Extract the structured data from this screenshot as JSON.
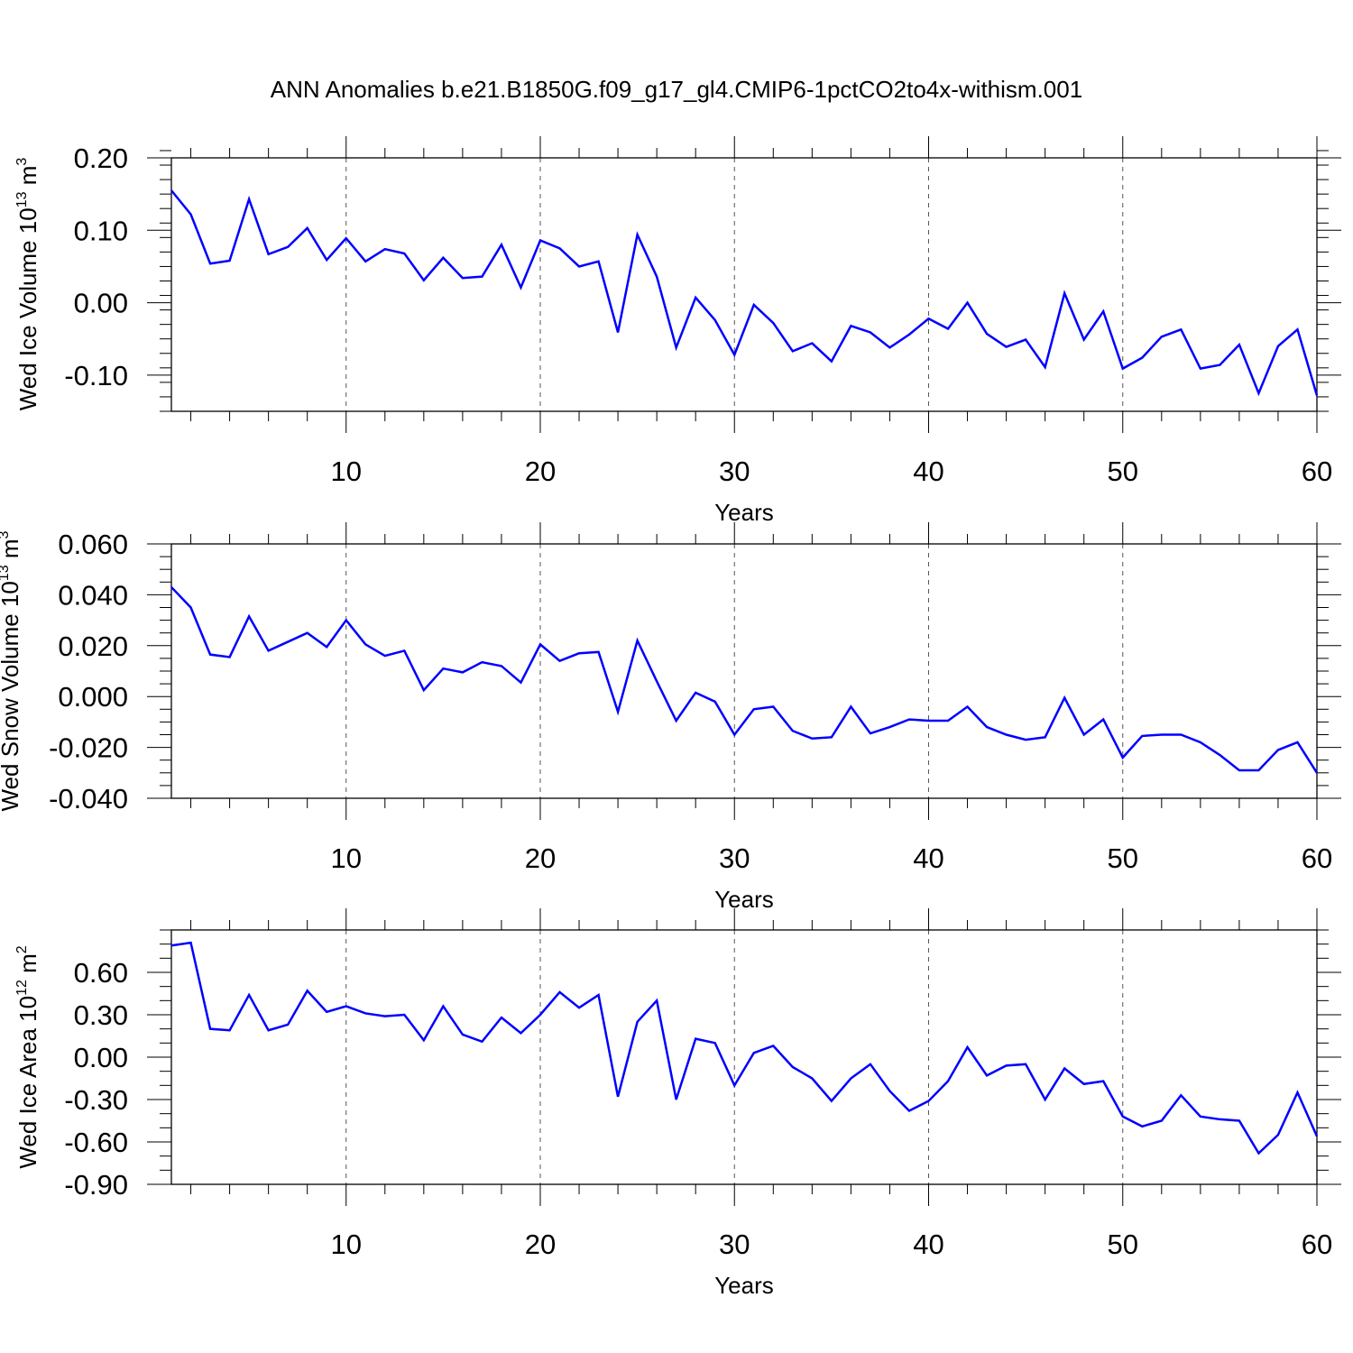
{
  "title": "ANN Anomalies b.e21.B1850G.f09_g17_gl4.CMIP6-1pctCO2to4x-withism.001",
  "line_color": "#0000ff",
  "chart_data": [
    {
      "type": "line",
      "ylabel": "Wed Ice Volume 10",
      "ylabel_exp": "13",
      "ylabel_unit": "m",
      "ylabel_unit_exp": "3",
      "xlabel": "Years",
      "xlim": [
        1,
        60
      ],
      "ylim": [
        -0.15,
        0.2
      ],
      "yticks": [
        0.2,
        0.1,
        0.0,
        -0.1
      ],
      "ytick_labels": [
        "0.20",
        "0.10",
        "0.00",
        "-0.10"
      ],
      "yminor_step": 0.02,
      "xticks": [
        10,
        20,
        30,
        40,
        50,
        60
      ],
      "xtick_labels": [
        "10",
        "20",
        "30",
        "40",
        "50",
        "60"
      ],
      "grid": "vertical dashed at major x ticks",
      "series": [
        {
          "x": [
            1,
            2,
            3,
            4,
            5,
            6,
            7,
            8,
            9,
            10,
            11,
            12,
            13,
            14,
            15,
            16,
            17,
            18,
            19,
            20,
            21,
            22,
            23,
            24,
            25,
            26,
            27,
            28,
            29,
            30,
            31,
            32,
            33,
            34,
            35,
            36,
            37,
            38,
            39,
            40,
            41,
            42,
            43,
            44,
            45,
            46,
            47,
            48,
            49,
            50,
            51,
            52,
            53,
            54,
            55,
            56,
            57,
            58,
            59,
            60
          ],
          "values": [
            0.155,
            0.122,
            0.054,
            0.058,
            0.143,
            0.067,
            0.077,
            0.103,
            0.059,
            0.089,
            0.057,
            0.074,
            0.068,
            0.031,
            0.062,
            0.034,
            0.036,
            0.08,
            0.021,
            0.086,
            0.075,
            0.05,
            0.057,
            -0.041,
            0.094,
            0.036,
            -0.062,
            0.007,
            -0.024,
            -0.072,
            -0.003,
            -0.028,
            -0.067,
            -0.056,
            -0.081,
            -0.032,
            -0.041,
            -0.062,
            -0.044,
            -0.022,
            -0.036,
            0.0,
            -0.043,
            -0.061,
            -0.051,
            -0.089,
            0.013,
            -0.051,
            -0.012,
            -0.091,
            -0.076,
            -0.047,
            -0.037,
            -0.091,
            -0.086,
            -0.058,
            -0.125,
            -0.06,
            -0.037,
            -0.128
          ]
        }
      ]
    },
    {
      "type": "line",
      "ylabel": "Wed Snow Volume 10",
      "ylabel_exp": "13",
      "ylabel_unit": "m",
      "ylabel_unit_exp": "3",
      "xlabel": "Years",
      "xlim": [
        1,
        60
      ],
      "ylim": [
        -0.04,
        0.06
      ],
      "yticks": [
        0.06,
        0.04,
        0.02,
        0.0,
        -0.02,
        -0.04
      ],
      "ytick_labels": [
        "0.060",
        "0.040",
        "0.020",
        "0.000",
        "-0.020",
        "-0.040"
      ],
      "yminor_step": 0.005,
      "xticks": [
        10,
        20,
        30,
        40,
        50,
        60
      ],
      "xtick_labels": [
        "10",
        "20",
        "30",
        "40",
        "50",
        "60"
      ],
      "grid": "vertical dashed at major x ticks",
      "series": [
        {
          "x": [
            1,
            2,
            3,
            4,
            5,
            6,
            7,
            8,
            9,
            10,
            11,
            12,
            13,
            14,
            15,
            16,
            17,
            18,
            19,
            20,
            21,
            22,
            23,
            24,
            25,
            26,
            27,
            28,
            29,
            30,
            31,
            32,
            33,
            34,
            35,
            36,
            37,
            38,
            39,
            40,
            41,
            42,
            43,
            44,
            45,
            46,
            47,
            48,
            49,
            50,
            51,
            52,
            53,
            54,
            55,
            56,
            57,
            58,
            59,
            60
          ],
          "values": [
            0.043,
            0.035,
            0.0165,
            0.0155,
            0.0315,
            0.018,
            0.0215,
            0.025,
            0.0195,
            0.03,
            0.0205,
            0.016,
            0.018,
            0.0025,
            0.011,
            0.0095,
            0.0135,
            0.012,
            0.0055,
            0.0205,
            0.014,
            0.017,
            0.0175,
            -0.006,
            0.022,
            0.006,
            -0.0095,
            0.0015,
            -0.002,
            -0.015,
            -0.005,
            -0.004,
            -0.0135,
            -0.0165,
            -0.016,
            -0.004,
            -0.0145,
            -0.012,
            -0.009,
            -0.0095,
            -0.0095,
            -0.004,
            -0.012,
            -0.015,
            -0.017,
            -0.016,
            -0.0005,
            -0.015,
            -0.009,
            -0.024,
            -0.0155,
            -0.015,
            -0.015,
            -0.018,
            -0.023,
            -0.029,
            -0.029,
            -0.021,
            -0.018,
            -0.03
          ]
        }
      ]
    },
    {
      "type": "line",
      "ylabel": "Wed Ice Area 10",
      "ylabel_exp": "12",
      "ylabel_unit": "m",
      "ylabel_unit_exp": "2",
      "xlabel": "Years",
      "xlim": [
        1,
        60
      ],
      "ylim": [
        -0.9,
        0.9
      ],
      "yticks": [
        0.6,
        0.3,
        0.0,
        -0.3,
        -0.6,
        -0.9
      ],
      "ytick_labels": [
        "0.60",
        "0.30",
        "0.00",
        "-0.30",
        "-0.60",
        "-0.90"
      ],
      "yminor_step": 0.1,
      "xticks": [
        10,
        20,
        30,
        40,
        50,
        60
      ],
      "xtick_labels": [
        "10",
        "20",
        "30",
        "40",
        "50",
        "60"
      ],
      "grid": "vertical dashed at major x ticks",
      "series": [
        {
          "x": [
            1,
            2,
            3,
            4,
            5,
            6,
            7,
            8,
            9,
            10,
            11,
            12,
            13,
            14,
            15,
            16,
            17,
            18,
            19,
            20,
            21,
            22,
            23,
            24,
            25,
            26,
            27,
            28,
            29,
            30,
            31,
            32,
            33,
            34,
            35,
            36,
            37,
            38,
            39,
            40,
            41,
            42,
            43,
            44,
            45,
            46,
            47,
            48,
            49,
            50,
            51,
            52,
            53,
            54,
            55,
            56,
            57,
            58,
            59,
            60
          ],
          "values": [
            0.79,
            0.81,
            0.2,
            0.19,
            0.44,
            0.19,
            0.23,
            0.47,
            0.32,
            0.36,
            0.31,
            0.29,
            0.3,
            0.12,
            0.36,
            0.16,
            0.11,
            0.28,
            0.17,
            0.3,
            0.46,
            0.35,
            0.44,
            -0.28,
            0.25,
            0.4,
            -0.3,
            0.13,
            0.1,
            -0.2,
            0.03,
            0.08,
            -0.07,
            -0.15,
            -0.31,
            -0.15,
            -0.05,
            -0.24,
            -0.38,
            -0.31,
            -0.17,
            0.07,
            -0.13,
            -0.06,
            -0.05,
            -0.3,
            -0.08,
            -0.19,
            -0.17,
            -0.42,
            -0.49,
            -0.45,
            -0.27,
            -0.42,
            -0.44,
            -0.45,
            -0.68,
            -0.55,
            -0.25,
            -0.56
          ]
        }
      ]
    }
  ]
}
